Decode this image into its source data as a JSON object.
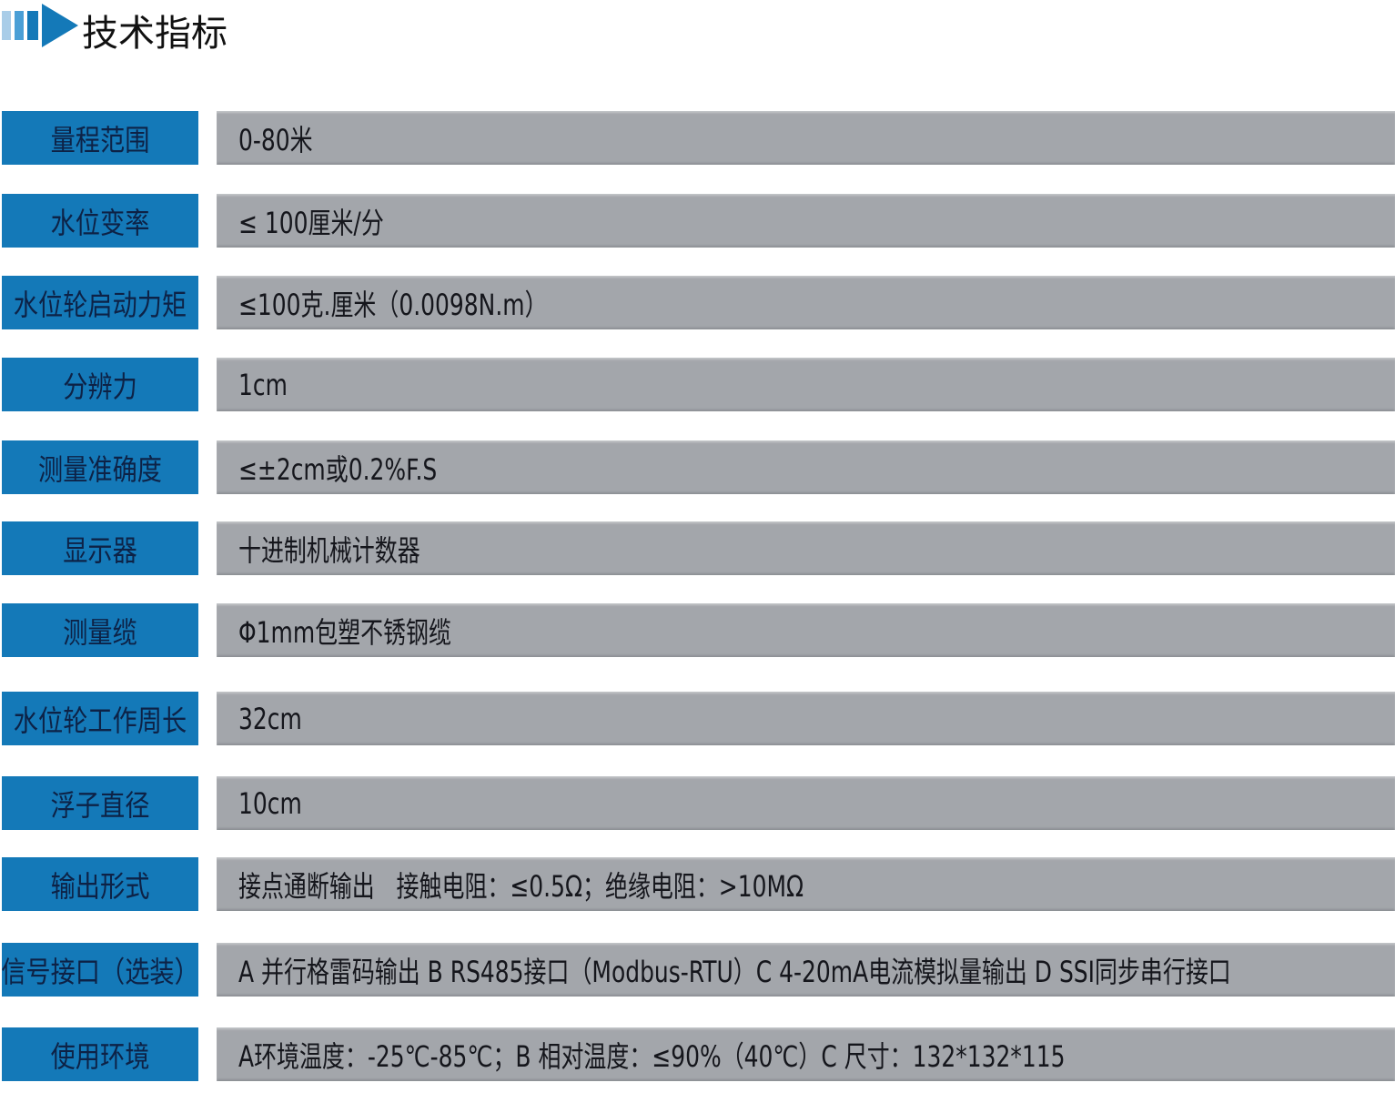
{
  "header": {
    "title": "技术指标"
  },
  "table": {
    "rows": [
      [
        "量程范围",
        "0-80米"
      ],
      [
        "水位变率",
        "≤ 100厘米/分"
      ],
      [
        "水位轮启动力矩",
        "≤100克.厘米（0.0098N.m）"
      ],
      [
        "分辨力",
        "1cm"
      ],
      [
        "测量准确度",
        "≤±2cm或0.2%F.S"
      ],
      [
        "显示器",
        "十进制机械计数器"
      ],
      [
        "测量缆",
        "Φ1mm包塑不锈钢缆"
      ],
      [
        "水位轮工作周长",
        "32cm"
      ],
      [
        "浮子直径",
        "10cm"
      ],
      [
        "输出形式",
        "接点通断输出   接触电阻：≤0.5Ω；绝缘电阻：>10MΩ"
      ],
      [
        "信号接口（选装）",
        "A 并行格雷码输出 B RS485接口（Modbus-RTU）C 4-20mA电流模拟量输出 D SSI同步串行接口"
      ],
      [
        "使用环境",
        "A环境温度：-25℃-85℃；B 相对温度：≤90%（40℃）C 尺寸：132*132*115"
      ]
    ]
  }
}
